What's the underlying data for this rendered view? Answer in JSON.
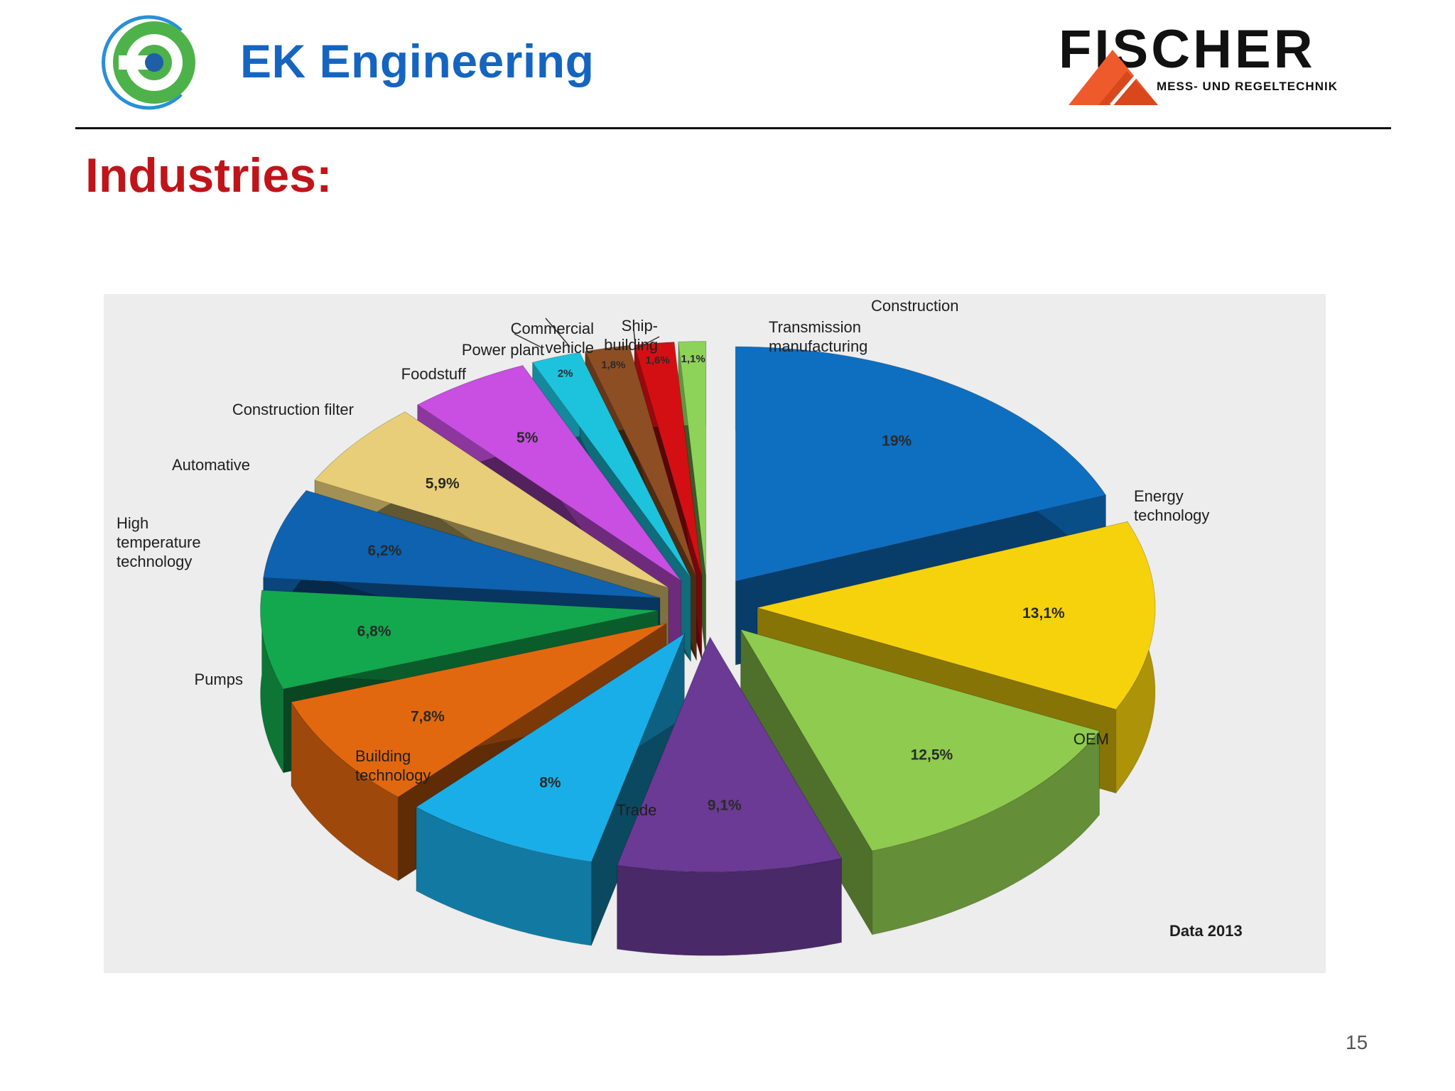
{
  "header": {
    "company": "EK Engineering",
    "partner_logo": "FISCHER",
    "partner_tagline": "MESS- UND REGELTECHNIK"
  },
  "page_heading": "Industries:",
  "page_number": "15",
  "icons": {
    "ek_logo": "ek-engineering-logo-icon",
    "fischer_logo": "fischer-logo-icon"
  },
  "chart_data": {
    "type": "pie",
    "style": "3d exploded",
    "title": "",
    "note": "Data 2013",
    "slices": [
      {
        "name": "Construction",
        "value": 19,
        "label": "19%",
        "color": "#0E6FC1"
      },
      {
        "name": "Energy technology",
        "value": 13.1,
        "label": "13,1%",
        "color": "#F6D20C"
      },
      {
        "name": "OEM",
        "value": 12.5,
        "label": "12,5%",
        "color": "#8FCB4E"
      },
      {
        "name": "Trade",
        "value": 9.1,
        "label": "9,1%",
        "color": "#6A3A95"
      },
      {
        "name": "Building technology",
        "value": 8,
        "label": "8%",
        "color": "#1AAEE8"
      },
      {
        "name": "Pumps",
        "value": 7.8,
        "label": "7,8%",
        "color": "#E2680F"
      },
      {
        "name": "High temperature technology",
        "value": 6.8,
        "label": "6,8%",
        "color": "#13A84E"
      },
      {
        "name": "Automative",
        "value": 6.2,
        "label": "6,2%",
        "color": "#0E62B0"
      },
      {
        "name": "Construction filter",
        "value": 5.9,
        "label": "5,9%",
        "color": "#E8CE78"
      },
      {
        "name": "Foodstuff",
        "value": 5,
        "label": "5%",
        "color": "#C84FE2"
      },
      {
        "name": "Power plant",
        "value": 2,
        "label": "2%",
        "color": "#1DC3DD"
      },
      {
        "name": "Commercial vehicle",
        "value": 1.8,
        "label": "1,8%",
        "color": "#8E4E23"
      },
      {
        "name": "Ship-building",
        "value": 1.6,
        "label": "1,6%",
        "color": "#D40F14"
      },
      {
        "name": "Transmission manufacturing",
        "value": 1.1,
        "label": "1,1%",
        "color": "#8DD35A"
      }
    ]
  }
}
